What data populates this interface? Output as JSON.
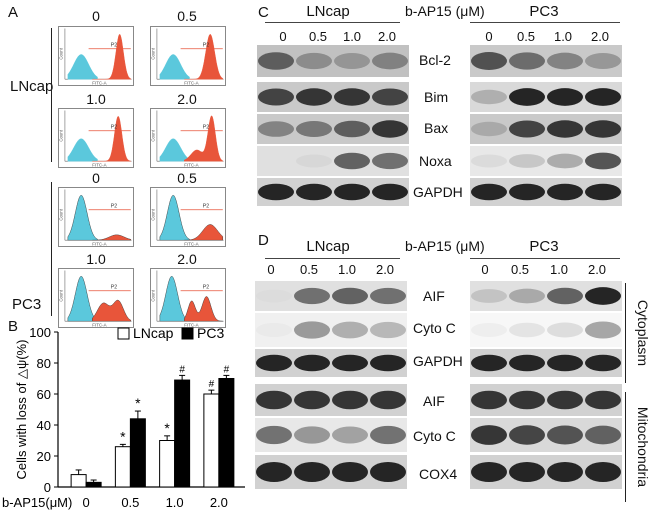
{
  "panel_letters": {
    "a": "A",
    "b": "B",
    "c": "C",
    "d": "D"
  },
  "panel_a": {
    "cell_lines": [
      "LNcap",
      "PC3"
    ],
    "concentrations": [
      "0",
      "0.5",
      "1.0",
      "2.0"
    ],
    "hist_gate_label": "P2",
    "hist_xaxis": "FITC-A",
    "hist_yaxis": "Count",
    "colors": {
      "low": "#5bc8dc",
      "high": "#e8553a"
    }
  },
  "panel_b": {
    "ylabel": "Cells with loss of △ψ(%)",
    "xlabel": "b-AP15(μM)",
    "legend": [
      "LNcap",
      "PC3"
    ],
    "sig_star": "*",
    "sig_hash": "#"
  },
  "chart_data": {
    "type": "bar",
    "categories": [
      "0",
      "0.5",
      "1.0",
      "2.0"
    ],
    "series": [
      {
        "name": "LNcap",
        "values": [
          8,
          26,
          30,
          60
        ],
        "errors": [
          3,
          1.5,
          3,
          2.5
        ],
        "marks": [
          "",
          "*",
          "*",
          "#"
        ],
        "color": "#ffffff"
      },
      {
        "name": "PC3",
        "values": [
          3,
          44,
          69,
          70
        ],
        "errors": [
          1.5,
          5,
          3,
          2
        ],
        "marks": [
          "",
          "*",
          "#",
          "#"
        ],
        "color": "#000000"
      }
    ],
    "ylim": [
      0,
      100
    ],
    "yticks": [
      0,
      20,
      40,
      60,
      80,
      100
    ],
    "ylabel": "Cells with loss of △ψ(%)",
    "xlabel": "b-AP15(μM)"
  },
  "panel_c": {
    "treatment": "b-AP15 (μM)",
    "groups": [
      "LNcap",
      "PC3"
    ],
    "concentrations": [
      "0",
      "0.5",
      "1.0",
      "2.0"
    ],
    "proteins": [
      "Bcl-2",
      "Bim",
      "Bax",
      "Noxa",
      "GAPDH"
    ]
  },
  "panel_d": {
    "treatment": "b-AP15 (μM)",
    "groups": [
      "LNcap",
      "PC3"
    ],
    "concentrations": [
      "0",
      "0.5",
      "1.0",
      "2.0"
    ],
    "cytoplasm_proteins": [
      "AIF",
      "Cyto C",
      "GAPDH"
    ],
    "mito_proteins": [
      "AIF",
      "Cyto C",
      "COX4"
    ],
    "fraction_cyto": "Cytoplasm",
    "fraction_mito": "Mitochondria"
  }
}
